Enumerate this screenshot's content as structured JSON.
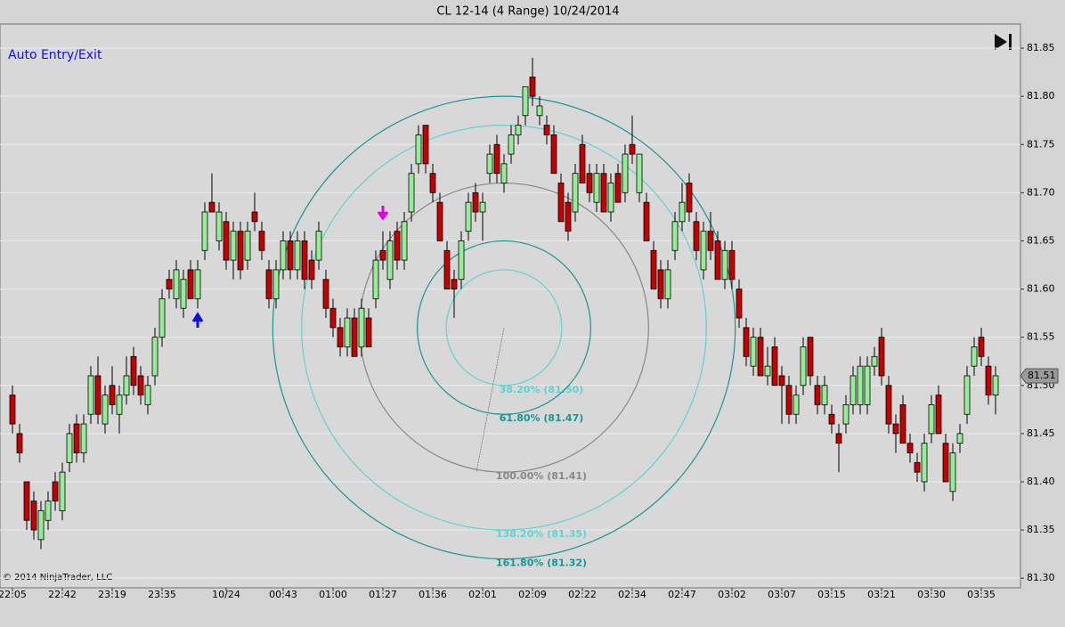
{
  "chart_data": {
    "type": "candlestick",
    "title": "CL 12-14 (4 Range)  10/24/2014",
    "annotation": "Auto Entry/Exit",
    "copyright": "© 2014 NinjaTrader, LLC",
    "categories": [
      "22:05",
      null,
      null,
      null,
      null,
      null,
      null,
      "22:42",
      null,
      null,
      null,
      null,
      null,
      null,
      "23:19",
      null,
      null,
      null,
      null,
      null,
      null,
      "23:35",
      null,
      null,
      null,
      null,
      null,
      null,
      null,
      null,
      "10/24",
      null,
      null,
      null,
      null,
      null,
      null,
      null,
      "00:43",
      null,
      null,
      null,
      null,
      null,
      null,
      "01:00",
      null,
      null,
      null,
      null,
      null,
      null,
      "01:27",
      null,
      null,
      null,
      null,
      null,
      null,
      "01:36",
      null,
      null,
      null,
      null,
      null,
      null,
      "02:01",
      null,
      null,
      null,
      null,
      null,
      null,
      "02:09",
      null,
      null,
      null,
      null,
      null,
      null,
      "02:22",
      null,
      null,
      null,
      null,
      null,
      null,
      "02:34",
      null,
      null,
      null,
      null,
      null,
      null,
      "02:47",
      null,
      null,
      null,
      null,
      null,
      null,
      "03:02",
      null,
      null,
      null,
      null,
      null,
      null,
      "03:07",
      null,
      null,
      null,
      null,
      null,
      null,
      "03:15",
      null,
      null,
      null,
      null,
      null,
      null,
      "03:21",
      null,
      null,
      null,
      null,
      null,
      null,
      "03:30",
      null,
      null,
      null,
      null,
      null,
      null,
      "03:35",
      null,
      null
    ],
    "candles": [
      [
        81.49,
        81.5,
        81.45,
        81.46
      ],
      [
        81.45,
        81.46,
        81.42,
        81.43
      ],
      [
        81.4,
        81.4,
        81.35,
        81.36
      ],
      [
        81.38,
        81.39,
        81.34,
        81.35
      ],
      [
        81.34,
        81.38,
        81.33,
        81.37
      ],
      [
        81.36,
        81.39,
        81.35,
        81.38
      ],
      [
        81.4,
        81.41,
        81.37,
        81.38
      ],
      [
        81.37,
        81.42,
        81.36,
        81.41
      ],
      [
        81.42,
        81.46,
        81.41,
        81.45
      ],
      [
        81.46,
        81.47,
        81.42,
        81.43
      ],
      [
        81.43,
        81.47,
        81.42,
        81.46
      ],
      [
        81.47,
        81.52,
        81.46,
        81.51
      ],
      [
        81.51,
        81.53,
        81.46,
        81.47
      ],
      [
        81.46,
        81.5,
        81.45,
        81.49
      ],
      [
        81.5,
        81.52,
        81.47,
        81.48
      ],
      [
        81.47,
        81.5,
        81.45,
        81.49
      ],
      [
        81.49,
        81.53,
        81.48,
        81.51
      ],
      [
        81.53,
        81.54,
        81.49,
        81.5
      ],
      [
        81.51,
        81.52,
        81.48,
        81.49
      ],
      [
        81.48,
        81.51,
        81.47,
        81.5
      ],
      [
        81.51,
        81.56,
        81.5,
        81.55
      ],
      [
        81.55,
        81.6,
        81.54,
        81.59
      ],
      [
        81.61,
        81.62,
        81.59,
        81.6
      ],
      [
        81.59,
        81.63,
        81.58,
        81.62
      ],
      [
        81.58,
        81.62,
        81.57,
        81.61
      ],
      [
        81.62,
        81.63,
        81.59,
        81.59
      ],
      [
        81.59,
        81.63,
        81.58,
        81.62
      ],
      [
        81.64,
        81.69,
        81.63,
        81.68
      ],
      [
        81.69,
        81.72,
        81.68,
        81.68
      ],
      [
        81.65,
        81.69,
        81.64,
        81.68
      ],
      [
        81.67,
        81.68,
        81.62,
        81.63
      ],
      [
        81.63,
        81.67,
        81.61,
        81.66
      ],
      [
        81.66,
        81.67,
        81.61,
        81.62
      ],
      [
        81.63,
        81.67,
        81.62,
        81.66
      ],
      [
        81.68,
        81.7,
        81.66,
        81.67
      ],
      [
        81.66,
        81.67,
        81.63,
        81.64
      ],
      [
        81.62,
        81.63,
        81.58,
        81.59
      ],
      [
        81.59,
        81.63,
        81.58,
        81.62
      ],
      [
        81.62,
        81.66,
        81.61,
        81.65
      ],
      [
        81.65,
        81.66,
        81.61,
        81.62
      ],
      [
        81.62,
        81.66,
        81.61,
        81.65
      ],
      [
        81.65,
        81.66,
        81.6,
        81.61
      ],
      [
        81.63,
        81.64,
        81.6,
        81.61
      ],
      [
        81.63,
        81.67,
        81.62,
        81.66
      ],
      [
        81.61,
        81.62,
        81.57,
        81.58
      ],
      [
        81.58,
        81.59,
        81.55,
        81.56
      ],
      [
        81.56,
        81.57,
        81.53,
        81.54
      ],
      [
        81.54,
        81.58,
        81.53,
        81.57
      ],
      [
        81.57,
        81.58,
        81.53,
        81.53
      ],
      [
        81.54,
        81.59,
        81.53,
        81.58
      ],
      [
        81.57,
        81.58,
        81.54,
        81.54
      ],
      [
        81.59,
        81.64,
        81.58,
        81.63
      ],
      [
        81.64,
        81.66,
        81.62,
        81.63
      ],
      [
        81.61,
        81.66,
        81.6,
        81.65
      ],
      [
        81.66,
        81.67,
        81.62,
        81.63
      ],
      [
        81.63,
        81.68,
        81.62,
        81.67
      ],
      [
        81.68,
        81.73,
        81.67,
        81.72
      ],
      [
        81.73,
        81.77,
        81.72,
        81.76
      ],
      [
        81.77,
        81.77,
        81.72,
        81.73
      ],
      [
        81.72,
        81.73,
        81.69,
        81.7
      ],
      [
        81.69,
        81.7,
        81.65,
        81.65
      ],
      [
        81.64,
        81.65,
        81.6,
        81.6
      ],
      [
        81.61,
        81.62,
        81.57,
        81.6
      ],
      [
        81.61,
        81.66,
        81.6,
        81.65
      ],
      [
        81.66,
        81.7,
        81.65,
        81.69
      ],
      [
        81.7,
        81.71,
        81.67,
        81.68
      ],
      [
        81.68,
        81.7,
        81.65,
        81.69
      ],
      [
        81.72,
        81.75,
        81.71,
        81.74
      ],
      [
        81.75,
        81.76,
        81.71,
        81.72
      ],
      [
        81.71,
        81.74,
        81.7,
        81.73
      ],
      [
        81.74,
        81.77,
        81.73,
        81.76
      ],
      [
        81.76,
        81.78,
        81.75,
        81.77
      ],
      [
        81.78,
        81.81,
        81.77,
        81.81
      ],
      [
        81.82,
        81.84,
        81.79,
        81.8
      ],
      [
        81.78,
        81.8,
        81.77,
        81.79
      ],
      [
        81.77,
        81.78,
        81.75,
        81.76
      ],
      [
        81.76,
        81.77,
        81.72,
        81.72
      ],
      [
        81.71,
        81.72,
        81.67,
        81.67
      ],
      [
        81.69,
        81.7,
        81.65,
        81.66
      ],
      [
        81.68,
        81.73,
        81.67,
        81.72
      ],
      [
        81.75,
        81.76,
        81.71,
        81.71
      ],
      [
        81.72,
        81.73,
        81.69,
        81.7
      ],
      [
        81.69,
        81.73,
        81.68,
        81.72
      ],
      [
        81.72,
        81.73,
        81.68,
        81.68
      ],
      [
        81.68,
        81.72,
        81.67,
        81.71
      ],
      [
        81.72,
        81.73,
        81.69,
        81.69
      ],
      [
        81.7,
        81.75,
        81.69,
        81.74
      ],
      [
        81.75,
        81.78,
        81.73,
        81.74
      ],
      [
        81.7,
        81.74,
        81.69,
        81.74
      ],
      [
        81.69,
        81.7,
        81.65,
        81.65
      ],
      [
        81.64,
        81.65,
        81.6,
        81.6
      ],
      [
        81.62,
        81.63,
        81.58,
        81.59
      ],
      [
        81.59,
        81.63,
        81.58,
        81.62
      ],
      [
        81.64,
        81.68,
        81.63,
        81.67
      ],
      [
        81.67,
        81.71,
        81.66,
        81.69
      ],
      [
        81.71,
        81.72,
        81.67,
        81.68
      ],
      [
        81.67,
        81.68,
        81.63,
        81.64
      ],
      [
        81.62,
        81.67,
        81.61,
        81.66
      ],
      [
        81.66,
        81.68,
        81.63,
        81.64
      ],
      [
        81.65,
        81.66,
        81.61,
        81.61
      ],
      [
        81.61,
        81.65,
        81.6,
        81.64
      ],
      [
        81.64,
        81.65,
        81.6,
        81.61
      ],
      [
        81.6,
        81.61,
        81.56,
        81.57
      ],
      [
        81.56,
        81.57,
        81.52,
        81.53
      ],
      [
        81.52,
        81.56,
        81.51,
        81.55
      ],
      [
        81.55,
        81.56,
        81.51,
        81.51
      ],
      [
        81.51,
        81.54,
        81.5,
        81.52
      ],
      [
        81.54,
        81.55,
        81.5,
        81.5
      ],
      [
        81.51,
        81.52,
        81.46,
        81.5
      ],
      [
        81.5,
        81.51,
        81.46,
        81.47
      ],
      [
        81.47,
        81.5,
        81.46,
        81.49
      ],
      [
        81.5,
        81.55,
        81.49,
        81.54
      ],
      [
        81.55,
        81.55,
        81.5,
        81.51
      ],
      [
        81.5,
        81.51,
        81.47,
        81.48
      ],
      [
        81.48,
        81.51,
        81.47,
        81.5
      ],
      [
        81.47,
        81.48,
        81.45,
        81.46
      ],
      [
        81.45,
        81.46,
        81.41,
        81.44
      ],
      [
        81.46,
        81.49,
        81.45,
        81.48
      ],
      [
        81.48,
        81.52,
        81.47,
        81.51
      ],
      [
        81.48,
        81.53,
        81.47,
        81.52
      ],
      [
        81.48,
        81.53,
        81.47,
        81.52
      ],
      [
        81.52,
        81.54,
        81.51,
        81.53
      ],
      [
        81.55,
        81.56,
        81.5,
        81.51
      ],
      [
        81.5,
        81.51,
        81.45,
        81.46
      ],
      [
        81.46,
        81.47,
        81.43,
        81.45
      ],
      [
        81.48,
        81.49,
        81.44,
        81.44
      ],
      [
        81.44,
        81.45,
        81.42,
        81.43
      ],
      [
        81.42,
        81.43,
        81.4,
        81.41
      ],
      [
        81.4,
        81.45,
        81.39,
        81.44
      ],
      [
        81.45,
        81.49,
        81.44,
        81.48
      ],
      [
        81.49,
        81.5,
        81.45,
        81.45
      ],
      [
        81.44,
        81.45,
        81.4,
        81.4
      ],
      [
        81.39,
        81.44,
        81.38,
        81.43
      ],
      [
        81.44,
        81.46,
        81.43,
        81.45
      ],
      [
        81.47,
        81.52,
        81.46,
        81.51
      ],
      [
        81.52,
        81.55,
        81.51,
        81.54
      ],
      [
        81.55,
        81.56,
        81.52,
        81.53
      ],
      [
        81.52,
        81.53,
        81.48,
        81.49
      ],
      [
        81.49,
        81.52,
        81.47,
        81.51
      ]
    ],
    "up_color": "#98ec98",
    "down_color": "#c40000",
    "ylim": [
      81.29,
      81.875
    ],
    "yticks": [
      {
        "value": 81.3,
        "label": "81.30"
      },
      81.35,
      {
        "value": 81.4,
        "label": "81.40"
      },
      81.45,
      {
        "value": 81.5,
        "label": "81.50"
      },
      81.55,
      {
        "value": 81.6,
        "label": "81.60"
      },
      81.65,
      {
        "value": 81.7,
        "label": "81.70"
      },
      81.75,
      {
        "value": 81.8,
        "label": "81.80"
      },
      81.85
    ],
    "grid": true,
    "fib_circles": {
      "center_bar": 69,
      "center_price": 81.56,
      "levels": [
        {
          "label": "38.20% (81.50)",
          "price": 81.5,
          "color": "#62d2d2"
        },
        {
          "label": "61.80% (81.47)",
          "price": 81.47,
          "color": "#1b9494"
        },
        {
          "label": "100.00% (81.41)",
          "price": 81.41,
          "color": "#888888"
        },
        {
          "label": "138.20% (81.35)",
          "price": 81.35,
          "color": "#62d2d2"
        },
        {
          "label": "161.80% (81.32)",
          "price": 81.32,
          "color": "#1b9494"
        }
      ]
    }
  }
}
